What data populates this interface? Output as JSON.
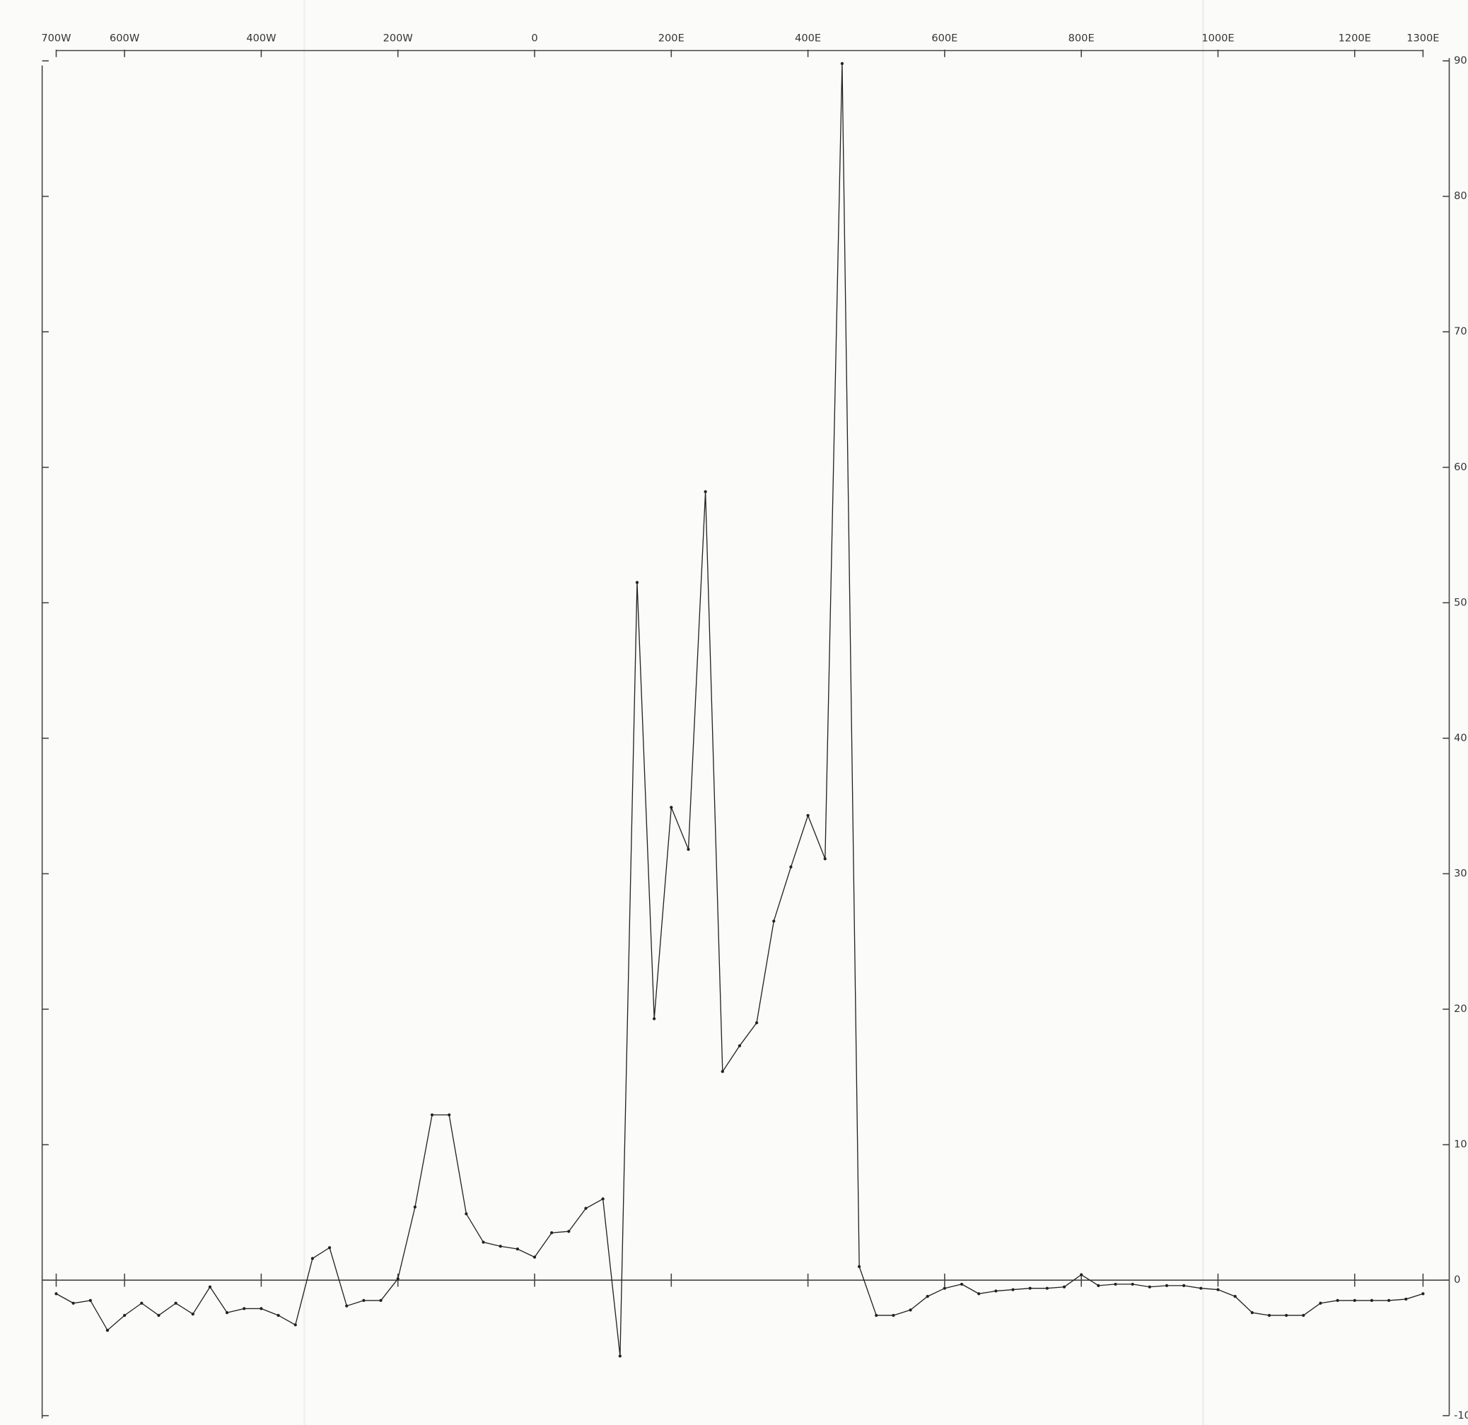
{
  "chart_data": {
    "type": "line",
    "x": [
      -700,
      -675,
      -650,
      -625,
      -600,
      -575,
      -550,
      -525,
      -500,
      -475,
      -450,
      -425,
      -400,
      -375,
      -350,
      -325,
      -300,
      -275,
      -250,
      -225,
      -200,
      -175,
      -150,
      -125,
      -100,
      -75,
      -50,
      -25,
      0,
      25,
      50,
      75,
      100,
      125,
      150,
      175,
      200,
      225,
      250,
      275,
      300,
      325,
      350,
      375,
      400,
      425,
      450,
      475,
      500,
      525,
      550,
      575,
      600,
      625,
      650,
      675,
      700,
      725,
      750,
      775,
      800,
      825,
      850,
      875,
      900,
      925,
      950,
      975,
      1000,
      1025,
      1050,
      1075,
      1100,
      1125,
      1150,
      1175,
      1200,
      1225,
      1250,
      1275,
      1300
    ],
    "values": [
      -1.0,
      -1.7,
      -1.5,
      -3.7,
      -2.6,
      -1.7,
      -2.6,
      -1.7,
      -2.5,
      -0.5,
      -2.4,
      -2.1,
      -2.1,
      -2.6,
      -3.3,
      1.6,
      2.4,
      -1.9,
      -1.5,
      -1.5,
      0.1,
      5.4,
      12.2,
      12.2,
      4.9,
      2.8,
      2.5,
      2.3,
      1.7,
      3.5,
      3.6,
      5.3,
      6.0,
      -5.6,
      51.5,
      19.3,
      34.9,
      31.8,
      58.2,
      15.4,
      17.3,
      19.0,
      26.5,
      30.5,
      34.3,
      31.1,
      89.8,
      1.0,
      -2.6,
      -2.6,
      -2.2,
      -1.2,
      -0.6,
      -0.3,
      -1.0,
      -0.8,
      -0.7,
      -0.6,
      -0.6,
      -0.5,
      0.4,
      -0.4,
      -0.3,
      -0.3,
      -0.5,
      -0.4,
      -0.4,
      -0.6,
      -0.7,
      -1.2,
      -2.4,
      -2.6,
      -2.6,
      -2.6,
      -1.7,
      -1.5,
      -1.5,
      -1.5,
      -1.5,
      -1.4,
      -1.0
    ],
    "color": "#222222",
    "xlim": [
      -700,
      1300
    ],
    "xticks": [
      {
        "value": -700,
        "label": "700W"
      },
      {
        "value": -600,
        "label": "600W"
      },
      {
        "value": -400,
        "label": "400W"
      },
      {
        "value": -200,
        "label": "200W"
      },
      0,
      {
        "value": 200,
        "label": "200E"
      },
      {
        "value": 400,
        "label": "400E"
      },
      {
        "value": 600,
        "label": "600E"
      },
      {
        "value": 800,
        "label": "800E"
      },
      {
        "value": 1000,
        "label": "1000E"
      },
      {
        "value": 1200,
        "label": "1200E"
      },
      {
        "value": 1300,
        "label": "1300E"
      }
    ],
    "ylim": [
      -10,
      90
    ],
    "yticks": [
      90,
      80,
      70,
      60,
      50,
      40,
      30,
      20,
      10,
      0,
      -10
    ]
  }
}
